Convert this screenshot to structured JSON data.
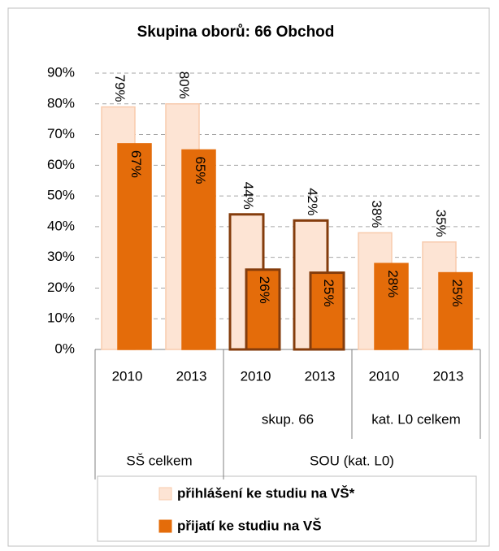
{
  "chart_data": {
    "type": "bar",
    "title": "Skupina oborů: 66 Obchod",
    "categories": [
      "2010",
      "2013",
      "2010",
      "2013",
      "2010",
      "2013"
    ],
    "category_groups": [
      [
        {
          "label": null,
          "span": 2
        },
        {
          "label": "skup. 66",
          "span": 2
        },
        {
          "label": "kat. L0 celkem",
          "span": 2
        }
      ],
      [
        {
          "label": "SŠ celkem",
          "span": 2
        },
        {
          "label": "SOU (kat. L0)",
          "span": 4
        }
      ]
    ],
    "series": [
      {
        "name": "přihlášení ke studiu na VŠ*",
        "color": "#fde4d4",
        "border_colors": [
          "#f8cbad",
          "#f8cbad",
          "#843c0c",
          "#843c0c",
          "#f8cbad",
          "#f8cbad"
        ],
        "values": [
          79,
          80,
          44,
          42,
          38,
          35
        ],
        "value_labels": [
          "79%",
          "80%",
          "44%",
          "42%",
          "38%",
          "35%"
        ]
      },
      {
        "name": "přijatí ke studiu na VŠ",
        "color": "#e46c0a",
        "border_colors": [
          "#e46c0a",
          "#e46c0a",
          "#843c0c",
          "#843c0c",
          "#e46c0a",
          "#e46c0a"
        ],
        "values": [
          67,
          65,
          26,
          25,
          28,
          25
        ],
        "value_labels": [
          "67%",
          "65%",
          "26%",
          "25%",
          "28%",
          "25%"
        ]
      }
    ],
    "ylim": [
      0,
      90
    ],
    "yticks": [
      {
        "value": 0,
        "label": "0%"
      },
      {
        "value": 10,
        "label": "10%"
      },
      {
        "value": 20,
        "label": "20%"
      },
      {
        "value": 30,
        "label": "30%"
      },
      {
        "value": 40,
        "label": "40%"
      },
      {
        "value": 50,
        "label": "50%"
      },
      {
        "value": 60,
        "label": "60%"
      },
      {
        "value": 70,
        "label": "70%"
      },
      {
        "value": 80,
        "label": "80%"
      },
      {
        "value": 90,
        "label": "90%"
      }
    ],
    "grid": true
  }
}
